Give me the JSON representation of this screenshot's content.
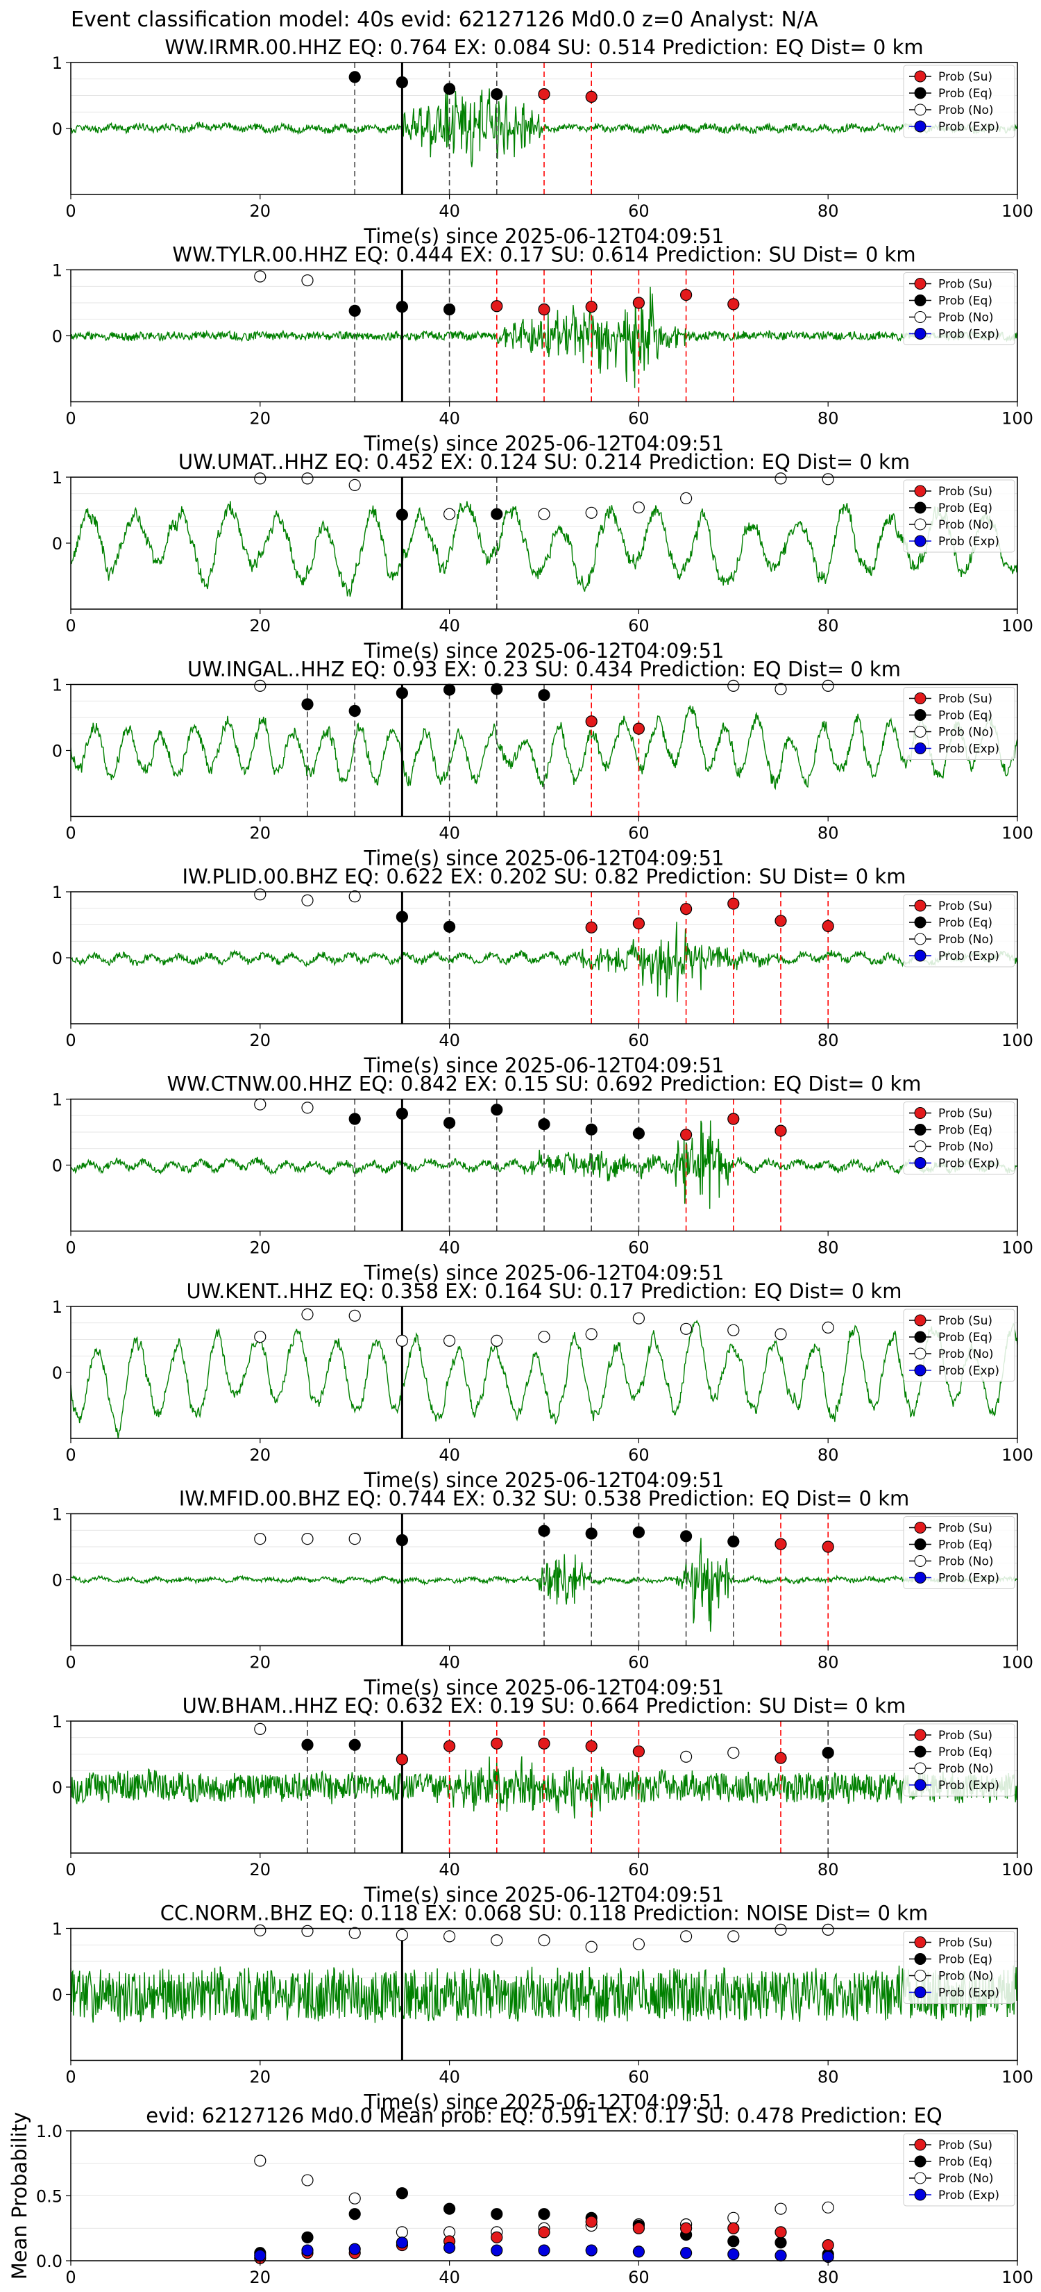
{
  "figure": {
    "suptitle": "Event classification model: 40s evid: 62127126 Md0.0 z=0 Analyst: N/A"
  },
  "legend_labels": [
    "Prob (Su)",
    "Prob (Eq)",
    "Prob (No)",
    "Prob (Exp)"
  ],
  "colors": {
    "trace": "#008000",
    "su": "#e31a1c",
    "eq": "#000000",
    "no": "#ffffff",
    "exp": "#0000e0",
    "su_line": "#ff0000",
    "eq_line": "#444444",
    "arrival_line": "#000000"
  },
  "chart_data": [
    {
      "type": "line",
      "xlabel": "Time(s) since 2025-06-12T04:09:51",
      "title": "WW.IRMR.00.HHZ   EQ: 0.764  EX: 0.084  SU: 0.514   Prediction: EQ    Dist= 0 km",
      "xlim": [
        0,
        100
      ],
      "ylim": [
        -1,
        1
      ],
      "xticks": [
        0,
        20,
        40,
        60,
        80,
        100
      ],
      "yticks": [
        1,
        0
      ],
      "arrival_time": 35,
      "eq_lines": [
        30,
        40,
        45
      ],
      "su_lines": [
        50,
        55
      ],
      "points": {
        "eq": [
          [
            30,
            0.78
          ],
          [
            35,
            0.7
          ],
          [
            40,
            0.6
          ],
          [
            45,
            0.52
          ]
        ],
        "su": [
          [
            50,
            0.52
          ],
          [
            55,
            0.48
          ]
        ],
        "no": [],
        "exp": []
      },
      "trace": {
        "seed": 11,
        "noise": 0.05,
        "wave": 0.04,
        "period": 3,
        "bursts": [
          [
            35,
            50,
            0.75
          ]
        ]
      }
    },
    {
      "type": "line",
      "xlabel": "Time(s) since 2025-06-12T04:09:51",
      "title": "WW.TYLR.00.HHZ   EQ: 0.444  EX: 0.17  SU: 0.614   Prediction: SU    Dist= 0 km",
      "xlim": [
        0,
        100
      ],
      "ylim": [
        -1,
        1
      ],
      "xticks": [
        0,
        20,
        40,
        60,
        80,
        100
      ],
      "yticks": [
        1,
        0
      ],
      "arrival_time": 35,
      "eq_lines": [
        30,
        40
      ],
      "su_lines": [
        45,
        50,
        55,
        60,
        65,
        70
      ],
      "points": {
        "eq": [
          [
            30,
            0.38
          ],
          [
            35,
            0.44
          ],
          [
            40,
            0.4
          ]
        ],
        "su": [
          [
            45,
            0.45
          ],
          [
            50,
            0.4
          ],
          [
            55,
            0.44
          ],
          [
            60,
            0.5
          ],
          [
            65,
            0.62
          ],
          [
            70,
            0.48
          ]
        ],
        "no": [
          [
            20,
            0.9
          ],
          [
            25,
            0.84
          ]
        ],
        "exp": []
      },
      "trace": {
        "seed": 23,
        "noise": 0.06,
        "wave": 0.02,
        "period": 3,
        "bursts": [
          [
            45,
            65,
            0.55
          ],
          [
            58,
            62,
            0.95
          ]
        ]
      }
    },
    {
      "type": "line",
      "xlabel": "Time(s) since 2025-06-12T04:09:51",
      "title": "UW.UMAT..HHZ   EQ: 0.452  EX: 0.124  SU: 0.214   Prediction: EQ    Dist= 0 km",
      "xlim": [
        0,
        100
      ],
      "ylim": [
        -1,
        1
      ],
      "xticks": [
        0,
        20,
        40,
        60,
        80,
        100
      ],
      "yticks": [
        1,
        0
      ],
      "arrival_time": 35,
      "eq_lines": [
        45
      ],
      "su_lines": [],
      "points": {
        "eq": [
          [
            35,
            0.43
          ],
          [
            45,
            0.44
          ]
        ],
        "su": [],
        "no": [
          [
            20,
            0.98
          ],
          [
            25,
            0.98
          ],
          [
            30,
            0.88
          ],
          [
            40,
            0.44
          ],
          [
            50,
            0.44
          ],
          [
            55,
            0.46
          ],
          [
            60,
            0.54
          ],
          [
            65,
            0.68
          ],
          [
            75,
            0.98
          ],
          [
            80,
            0.97
          ]
        ],
        "exp": []
      },
      "trace": {
        "seed": 37,
        "noise": 0.08,
        "wave": 0.6,
        "period": 5,
        "bursts": []
      }
    },
    {
      "type": "line",
      "xlabel": "Time(s) since 2025-06-12T04:09:51",
      "title": "UW.INGAL..HHZ   EQ: 0.93  EX: 0.23  SU: 0.434   Prediction: EQ    Dist= 0 km",
      "xlim": [
        0,
        100
      ],
      "ylim": [
        -1,
        1
      ],
      "xticks": [
        0,
        20,
        40,
        60,
        80,
        100
      ],
      "yticks": [
        1,
        0
      ],
      "arrival_time": 35,
      "eq_lines": [
        25,
        30,
        40,
        45,
        50
      ],
      "su_lines": [
        55,
        60
      ],
      "points": {
        "eq": [
          [
            25,
            0.7
          ],
          [
            30,
            0.6
          ],
          [
            35,
            0.87
          ],
          [
            40,
            0.92
          ],
          [
            45,
            0.93
          ],
          [
            50,
            0.84
          ]
        ],
        "su": [
          [
            55,
            0.44
          ],
          [
            60,
            0.33
          ]
        ],
        "no": [
          [
            20,
            0.98
          ],
          [
            70,
            0.98
          ],
          [
            75,
            0.93
          ],
          [
            80,
            0.98
          ]
        ],
        "exp": []
      },
      "trace": {
        "seed": 41,
        "noise": 0.07,
        "wave": 0.5,
        "period": 3.5,
        "bursts": []
      }
    },
    {
      "type": "line",
      "xlabel": "Time(s) since 2025-06-12T04:09:51",
      "title": "IW.PLID.00.BHZ   EQ: 0.622  EX: 0.202  SU: 0.82   Prediction: SU    Dist= 0 km",
      "xlim": [
        0,
        100
      ],
      "ylim": [
        -1,
        1
      ],
      "xticks": [
        0,
        20,
        40,
        60,
        80,
        100
      ],
      "yticks": [
        1,
        0
      ],
      "arrival_time": 35,
      "eq_lines": [
        40
      ],
      "su_lines": [
        55,
        60,
        65,
        70,
        75,
        80
      ],
      "points": {
        "eq": [
          [
            35,
            0.62
          ],
          [
            40,
            0.47
          ]
        ],
        "su": [
          [
            55,
            0.46
          ],
          [
            60,
            0.52
          ],
          [
            65,
            0.74
          ],
          [
            70,
            0.82
          ],
          [
            75,
            0.56
          ],
          [
            80,
            0.48
          ]
        ],
        "no": [
          [
            20,
            0.96
          ],
          [
            25,
            0.87
          ],
          [
            30,
            0.93
          ]
        ],
        "exp": []
      },
      "trace": {
        "seed": 53,
        "noise": 0.05,
        "wave": 0.08,
        "period": 3,
        "bursts": [
          [
            52,
            75,
            0.3
          ],
          [
            60,
            67,
            0.75
          ]
        ]
      }
    },
    {
      "type": "line",
      "xlabel": "Time(s) since 2025-06-12T04:09:51",
      "title": "WW.CTNW.00.HHZ   EQ: 0.842  EX: 0.15  SU: 0.692   Prediction: EQ    Dist= 0 km",
      "xlim": [
        0,
        100
      ],
      "ylim": [
        -1,
        1
      ],
      "xticks": [
        0,
        20,
        40,
        60,
        80,
        100
      ],
      "yticks": [
        1,
        0
      ],
      "arrival_time": 35,
      "eq_lines": [
        30,
        40,
        45,
        50,
        55,
        60
      ],
      "su_lines": [
        65,
        70,
        75
      ],
      "points": {
        "eq": [
          [
            30,
            0.7
          ],
          [
            35,
            0.78
          ],
          [
            40,
            0.64
          ],
          [
            45,
            0.84
          ],
          [
            50,
            0.62
          ],
          [
            55,
            0.54
          ],
          [
            60,
            0.48
          ]
        ],
        "su": [
          [
            65,
            0.46
          ],
          [
            70,
            0.7
          ],
          [
            75,
            0.52
          ]
        ],
        "no": [
          [
            20,
            0.92
          ],
          [
            25,
            0.87
          ]
        ],
        "exp": []
      },
      "trace": {
        "seed": 67,
        "noise": 0.05,
        "wave": 0.08,
        "period": 3,
        "bursts": [
          [
            47,
            65,
            0.25
          ],
          [
            63,
            70,
            0.8
          ]
        ]
      }
    },
    {
      "type": "line",
      "xlabel": "Time(s) since 2025-06-12T04:09:51",
      "title": "UW.KENT..HHZ   EQ: 0.358  EX: 0.164  SU: 0.17   Prediction: EQ    Dist= 0 km",
      "xlim": [
        0,
        100
      ],
      "ylim": [
        -1,
        1
      ],
      "xticks": [
        0,
        20,
        40,
        60,
        80,
        100
      ],
      "yticks": [
        1,
        0
      ],
      "arrival_time": 35,
      "eq_lines": [],
      "su_lines": [],
      "points": {
        "eq": [],
        "su": [],
        "no": [
          [
            20,
            0.54
          ],
          [
            25,
            0.88
          ],
          [
            30,
            0.86
          ],
          [
            35,
            0.48
          ],
          [
            40,
            0.48
          ],
          [
            45,
            0.48
          ],
          [
            50,
            0.54
          ],
          [
            55,
            0.58
          ],
          [
            60,
            0.82
          ],
          [
            65,
            0.66
          ],
          [
            70,
            0.64
          ],
          [
            75,
            0.58
          ],
          [
            80,
            0.68
          ]
        ],
        "exp": []
      },
      "trace": {
        "seed": 79,
        "noise": 0.05,
        "wave": 0.72,
        "period": 4.2,
        "bursts": []
      }
    },
    {
      "type": "line",
      "xlabel": "Time(s) since 2025-06-12T04:09:51",
      "title": "IW.MFID.00.BHZ   EQ: 0.744  EX: 0.32  SU: 0.538   Prediction: EQ    Dist= 0 km",
      "xlim": [
        0,
        100
      ],
      "ylim": [
        -1,
        1
      ],
      "xticks": [
        0,
        20,
        40,
        60,
        80,
        100
      ],
      "yticks": [
        1,
        0
      ],
      "arrival_time": 35,
      "eq_lines": [
        50,
        55,
        60,
        65,
        70
      ],
      "su_lines": [
        75,
        80
      ],
      "points": {
        "eq": [
          [
            35,
            0.6
          ],
          [
            50,
            0.74
          ],
          [
            55,
            0.7
          ],
          [
            60,
            0.72
          ],
          [
            65,
            0.66
          ],
          [
            70,
            0.58
          ]
        ],
        "su": [
          [
            75,
            0.54
          ],
          [
            80,
            0.5
          ]
        ],
        "no": [
          [
            20,
            0.62
          ],
          [
            25,
            0.62
          ],
          [
            30,
            0.62
          ]
        ],
        "exp": []
      },
      "trace": {
        "seed": 83,
        "noise": 0.03,
        "wave": 0.03,
        "period": 3,
        "bursts": [
          [
            49,
            55,
            0.55
          ],
          [
            64,
            70,
            0.8
          ]
        ]
      }
    },
    {
      "type": "line",
      "xlabel": "Time(s) since 2025-06-12T04:09:51",
      "title": "UW.BHAM..HHZ   EQ: 0.632  EX: 0.19  SU: 0.664   Prediction: SU    Dist= 0 km",
      "xlim": [
        0,
        100
      ],
      "ylim": [
        -1,
        1
      ],
      "xticks": [
        0,
        20,
        40,
        60,
        80,
        100
      ],
      "yticks": [
        1,
        0
      ],
      "arrival_time": 35,
      "eq_lines": [
        25,
        30,
        80
      ],
      "su_lines": [
        40,
        45,
        50,
        55,
        60,
        75
      ],
      "points": {
        "eq": [
          [
            25,
            0.64
          ],
          [
            30,
            0.64
          ],
          [
            80,
            0.52
          ]
        ],
        "su": [
          [
            35,
            0.42
          ],
          [
            40,
            0.62
          ],
          [
            45,
            0.66
          ],
          [
            50,
            0.66
          ],
          [
            55,
            0.62
          ],
          [
            60,
            0.54
          ],
          [
            75,
            0.44
          ]
        ],
        "no": [
          [
            20,
            0.88
          ],
          [
            65,
            0.46
          ],
          [
            70,
            0.52
          ]
        ],
        "exp": []
      },
      "trace": {
        "seed": 97,
        "noise": 0.22,
        "wave": 0.05,
        "period": 3,
        "bursts": [
          [
            38,
            60,
            0.35
          ]
        ]
      }
    },
    {
      "type": "line",
      "xlabel": "Time(s) since 2025-06-12T04:09:51",
      "title": "CC.NORM..BHZ   EQ: 0.118  EX: 0.068  SU: 0.118   Prediction: NOISE    Dist= 0 km",
      "xlim": [
        0,
        100
      ],
      "ylim": [
        -1,
        1
      ],
      "xticks": [
        0,
        20,
        40,
        60,
        80,
        100
      ],
      "yticks": [
        1,
        0
      ],
      "arrival_time": 35,
      "eq_lines": [],
      "su_lines": [],
      "points": {
        "eq": [],
        "su": [],
        "no": [
          [
            20,
            0.97
          ],
          [
            25,
            0.96
          ],
          [
            30,
            0.93
          ],
          [
            35,
            0.9
          ],
          [
            40,
            0.88
          ],
          [
            45,
            0.82
          ],
          [
            50,
            0.82
          ],
          [
            55,
            0.72
          ],
          [
            60,
            0.76
          ],
          [
            65,
            0.88
          ],
          [
            70,
            0.88
          ],
          [
            75,
            0.98
          ],
          [
            80,
            0.98
          ]
        ],
        "exp": []
      },
      "trace": {
        "seed": 101,
        "noise": 0.4,
        "wave": 0.05,
        "period": 3,
        "bursts": []
      }
    },
    {
      "type": "scatter",
      "title": "evid: 62127126  Md0.0   Mean prob:   EQ: 0.591  EX: 0.17  SU: 0.478   Prediction: EQ",
      "ylabel": "Mean Probability",
      "xlabel": "",
      "xlim": [
        0,
        100
      ],
      "ylim": [
        0,
        1
      ],
      "xticks": [
        0,
        20,
        40,
        60,
        80,
        100
      ],
      "yticks": [
        1.0,
        0.5,
        0.0
      ],
      "ytick_labels": [
        "1.0",
        "0.5",
        "0.0"
      ],
      "points": {
        "no": [
          [
            20,
            0.77
          ],
          [
            25,
            0.62
          ],
          [
            30,
            0.48
          ],
          [
            35,
            0.22
          ],
          [
            40,
            0.22
          ],
          [
            45,
            0.22
          ],
          [
            50,
            0.25
          ],
          [
            55,
            0.27
          ],
          [
            60,
            0.28
          ],
          [
            65,
            0.28
          ],
          [
            70,
            0.33
          ],
          [
            75,
            0.4
          ],
          [
            80,
            0.41
          ]
        ],
        "eq": [
          [
            20,
            0.06
          ],
          [
            25,
            0.18
          ],
          [
            30,
            0.36
          ],
          [
            35,
            0.52
          ],
          [
            40,
            0.4
          ],
          [
            45,
            0.36
          ],
          [
            50,
            0.36
          ],
          [
            55,
            0.33
          ],
          [
            60,
            0.27
          ],
          [
            65,
            0.2
          ],
          [
            70,
            0.15
          ],
          [
            75,
            0.14
          ],
          [
            80,
            0.05
          ]
        ],
        "su": [
          [
            20,
            0.02
          ],
          [
            25,
            0.06
          ],
          [
            30,
            0.06
          ],
          [
            35,
            0.12
          ],
          [
            40,
            0.15
          ],
          [
            45,
            0.18
          ],
          [
            50,
            0.22
          ],
          [
            55,
            0.3
          ],
          [
            60,
            0.25
          ],
          [
            65,
            0.25
          ],
          [
            70,
            0.25
          ],
          [
            75,
            0.22
          ],
          [
            80,
            0.12
          ]
        ],
        "exp": [
          [
            20,
            0.04
          ],
          [
            25,
            0.08
          ],
          [
            30,
            0.09
          ],
          [
            35,
            0.14
          ],
          [
            40,
            0.1
          ],
          [
            45,
            0.08
          ],
          [
            50,
            0.08
          ],
          [
            55,
            0.08
          ],
          [
            60,
            0.07
          ],
          [
            65,
            0.06
          ],
          [
            70,
            0.05
          ],
          [
            75,
            0.04
          ],
          [
            80,
            0.03
          ]
        ]
      }
    }
  ]
}
